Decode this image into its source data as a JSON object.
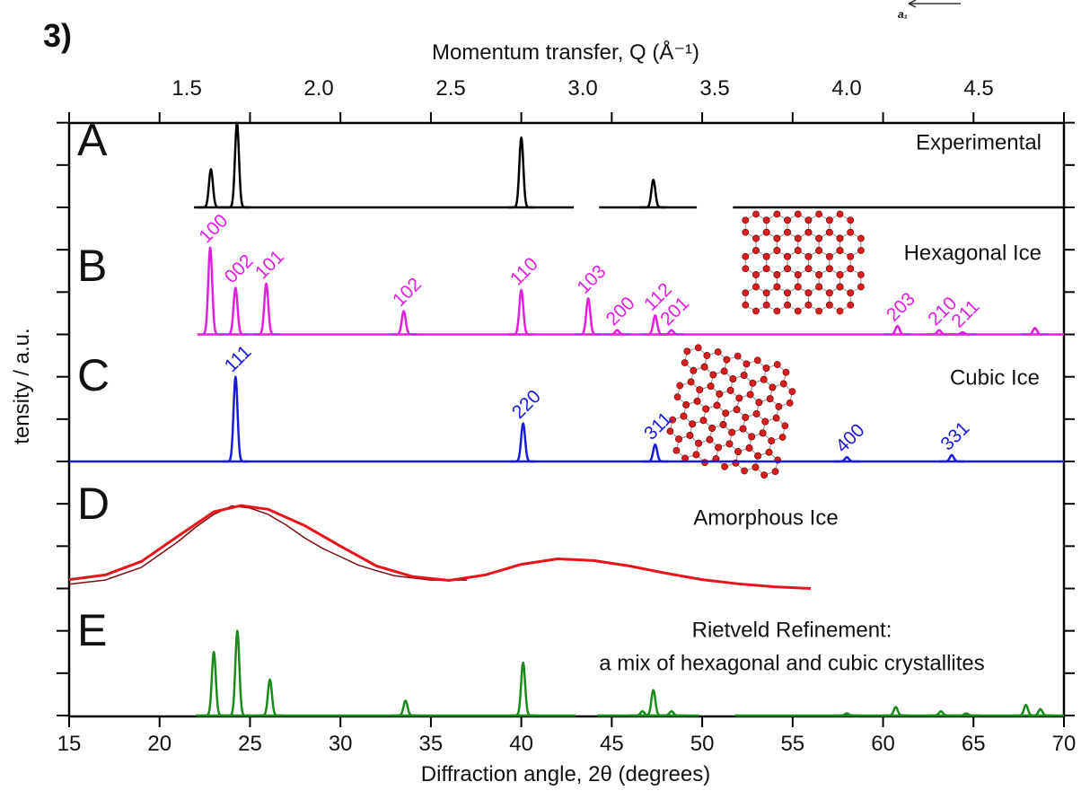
{
  "figure_label": "3)",
  "inset_label": "a₁",
  "chart_data": {
    "type": "line",
    "x_label": "Diffraction angle, 2θ (degrees)",
    "x2_label": "Momentum transfer, Q (Å⁻¹)",
    "y_label": "tensity / a.u.",
    "xlim": [
      15,
      70
    ],
    "xticks": [
      15,
      20,
      25,
      30,
      35,
      40,
      45,
      50,
      55,
      60,
      65,
      70
    ],
    "x2lim": [
      1.054,
      4.823
    ],
    "x2ticks": [
      1.5,
      {
        "value": 2,
        "label": "2.0"
      },
      2.5,
      {
        "value": 3,
        "label": "3.0"
      },
      3.5,
      {
        "value": 4,
        "label": "4.0"
      },
      4.5
    ],
    "ylim": [
      0,
      3
    ],
    "yticks": [
      0,
      1,
      2
    ],
    "panels": [
      {
        "letter": "A",
        "name": [
          "Experimental"
        ],
        "color": "#000000",
        "segments": [
          [
            21.9,
            42.9
          ],
          [
            44.3,
            49.7
          ],
          [
            51.7,
            70
          ]
        ],
        "x": [
          22.84,
          24.28,
          40.0,
          47.3
        ],
        "values": [
          0.9,
          2.0,
          1.65,
          0.65
        ]
      },
      {
        "letter": "B",
        "name": [
          "Hexagonal Ice"
        ],
        "color": "#e020e0",
        "segments": [
          [
            22.3,
            70
          ]
        ],
        "x": [
          22.8,
          24.2,
          25.9,
          33.5,
          40.0,
          43.7,
          45.3,
          47.4,
          48.3,
          60.8,
          63.1,
          64.4,
          68.4
        ],
        "values": [
          2.05,
          1.1,
          1.2,
          0.55,
          1.05,
          0.85,
          0.1,
          0.45,
          0.1,
          0.2,
          0.1,
          0.05,
          0.15
        ],
        "labels": [
          "100",
          "002",
          "101",
          "102",
          "110",
          "103",
          "200",
          "112",
          "201",
          "203",
          "210",
          "211",
          null
        ]
      },
      {
        "letter": "C",
        "name": [
          "Cubic Ice"
        ],
        "color": "#1a1adb",
        "segments": [
          [
            15,
            70
          ]
        ],
        "x": [
          24.2,
          40.1,
          47.4,
          58.0,
          63.8
        ],
        "values": [
          2.0,
          0.9,
          0.4,
          0.1,
          0.15
        ],
        "labels": [
          "111",
          "220",
          "311",
          "400",
          "331"
        ]
      },
      {
        "letter": "D",
        "name": [
          "Amorphous Ice"
        ],
        "lines": [
          {
            "color": "#7a0f14",
            "x": [
              15,
              16,
              17,
              18,
              19,
              20,
              21,
              22,
              23,
              24,
              25,
              26,
              27,
              28,
              29,
              30,
              31,
              32,
              33,
              34,
              35,
              36,
              37
            ],
            "values": [
              0.1,
              0.15,
              0.2,
              0.35,
              0.5,
              0.8,
              1.1,
              1.45,
              1.75,
              1.95,
              1.9,
              1.75,
              1.5,
              1.2,
              0.95,
              0.75,
              0.55,
              0.42,
              0.3,
              0.25,
              0.2,
              0.2,
              0.2
            ]
          },
          {
            "color": "#e8141c",
            "x": [
              15,
              17,
              19,
              21,
              23,
              24.5,
              26,
              28,
              30,
              32,
              34,
              36,
              38,
              40,
              42,
              44,
              46,
              48,
              50,
              52,
              54,
              56
            ],
            "values": [
              0.21,
              0.32,
              0.64,
              1.23,
              1.81,
              1.96,
              1.87,
              1.49,
              1.0,
              0.53,
              0.28,
              0.19,
              0.32,
              0.57,
              0.7,
              0.66,
              0.53,
              0.36,
              0.21,
              0.11,
              0.04,
              0
            ]
          }
        ]
      },
      {
        "letter": "E",
        "name": [
          "Rietveld Refinement:",
          "a mix of hexagonal and cubic crystallites"
        ],
        "color": "#1a8a1a",
        "segments": [
          [
            22.0,
            43.0
          ],
          [
            44.2,
            49.8
          ],
          [
            51.8,
            70
          ]
        ],
        "x": [
          23.0,
          24.3,
          26.1,
          33.6,
          40.1,
          46.7,
          47.3,
          48.3,
          58.0,
          60.7,
          63.2,
          64.6,
          67.9,
          68.7
        ],
        "values": [
          1.5,
          2.0,
          0.85,
          0.35,
          1.25,
          0.1,
          0.6,
          0.1,
          0.05,
          0.2,
          0.1,
          0.05,
          0.25,
          0.15
        ]
      }
    ]
  }
}
